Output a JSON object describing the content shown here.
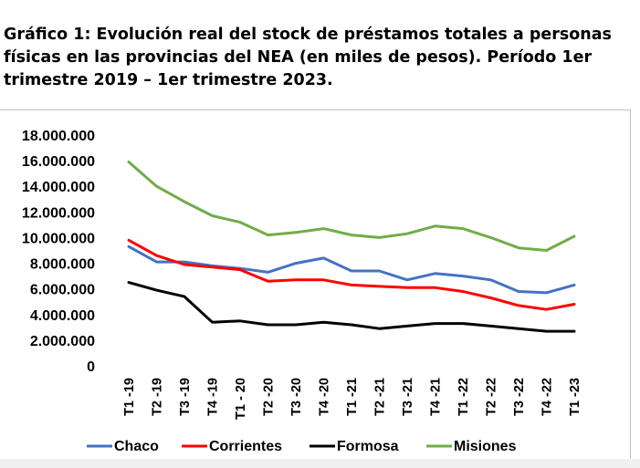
{
  "title": "Gráfico 1: Evolución real del stock de préstamos totales a personas físicas en las provincias del NEA (en miles de pesos). Período 1er trimestre 2019 – 1er trimestre 2023.",
  "chart_data": {
    "type": "line",
    "categories": [
      "T1 -19",
      "T2 -19",
      "T3 -19",
      "T4 -19",
      "T1 - 20",
      "T2 -20",
      "T3 -20",
      "T4 -20",
      "T1 -21",
      "T2 -21",
      "T3 -21",
      "T4 -21",
      "T1 -22",
      "T2 -22",
      "T3 -22",
      "T4 -22",
      "T1 -23"
    ],
    "y_ticks": [
      "18.000.000",
      "16.000.000",
      "14.000.000",
      "12.000.000",
      "10.000.000",
      "8.000.000",
      "6.000.000",
      "4.000.000",
      "2.000.000",
      "0"
    ],
    "ylim": [
      0,
      18000000
    ],
    "grid": false,
    "legend_position": "bottom",
    "series": [
      {
        "name": "Chaco",
        "color": "#4472c4",
        "values": [
          9300000,
          8100000,
          8100000,
          7800000,
          7600000,
          7300000,
          8000000,
          8400000,
          7400000,
          7400000,
          6700000,
          7200000,
          7000000,
          6700000,
          5800000,
          5700000,
          6300000
        ]
      },
      {
        "name": "Corrientes",
        "color": "#ff0000",
        "values": [
          9800000,
          8600000,
          7900000,
          7700000,
          7500000,
          6600000,
          6700000,
          6700000,
          6300000,
          6200000,
          6100000,
          6100000,
          5800000,
          5300000,
          4700000,
          4400000,
          4800000
        ]
      },
      {
        "name": "Formosa",
        "color": "#000000",
        "values": [
          6500000,
          5900000,
          5400000,
          3400000,
          3500000,
          3200000,
          3200000,
          3400000,
          3200000,
          2900000,
          3100000,
          3300000,
          3300000,
          3100000,
          2900000,
          2700000,
          2700000
        ]
      },
      {
        "name": "Misiones",
        "color": "#70ad47",
        "values": [
          15900000,
          14000000,
          12800000,
          11700000,
          11200000,
          10200000,
          10400000,
          10700000,
          10200000,
          10000000,
          10300000,
          10900000,
          10700000,
          10000000,
          9200000,
          9000000,
          10100000
        ]
      }
    ]
  }
}
